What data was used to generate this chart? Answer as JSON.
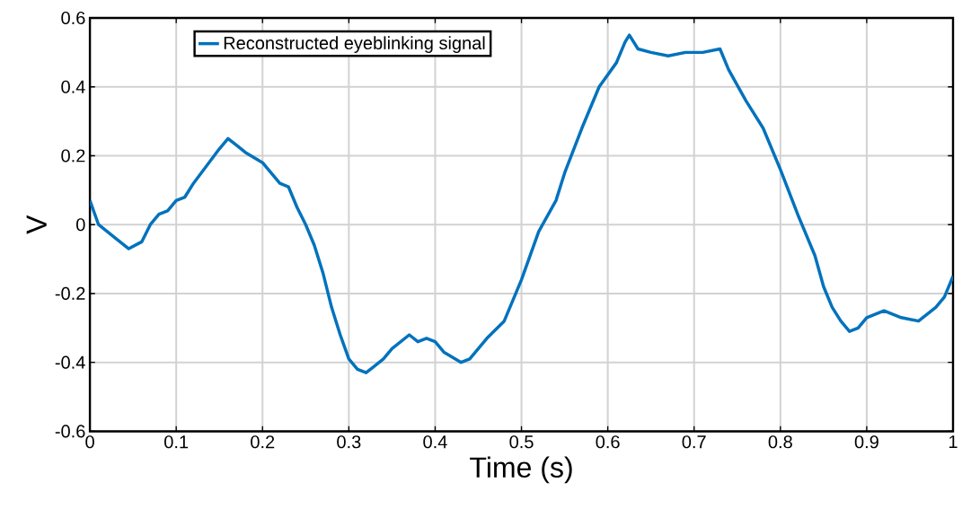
{
  "chart_data": {
    "type": "line",
    "xlabel": "Time (s)",
    "ylabel": "V",
    "xlim": [
      0,
      1
    ],
    "ylim": [
      -0.6,
      0.6
    ],
    "xticks": [
      0,
      0.1,
      0.2,
      0.3,
      0.4,
      0.5,
      0.6,
      0.7,
      0.8,
      0.9,
      1
    ],
    "yticks": [
      -0.6,
      -0.4,
      -0.2,
      0,
      0.2,
      0.4,
      0.6
    ],
    "grid": true,
    "legend": "top left",
    "series": [
      {
        "name": "Reconstructed eyeblinking signal",
        "color": "#0072bd",
        "x": [
          0,
          0.01,
          0.02,
          0.03,
          0.045,
          0.06,
          0.07,
          0.08,
          0.09,
          0.1,
          0.11,
          0.12,
          0.135,
          0.15,
          0.16,
          0.17,
          0.18,
          0.2,
          0.21,
          0.22,
          0.23,
          0.24,
          0.25,
          0.26,
          0.27,
          0.28,
          0.29,
          0.3,
          0.31,
          0.32,
          0.33,
          0.34,
          0.35,
          0.37,
          0.38,
          0.39,
          0.4,
          0.41,
          0.43,
          0.44,
          0.45,
          0.46,
          0.48,
          0.49,
          0.5,
          0.52,
          0.54,
          0.55,
          0.57,
          0.59,
          0.61,
          0.62,
          0.625,
          0.635,
          0.65,
          0.67,
          0.69,
          0.71,
          0.73,
          0.74,
          0.76,
          0.78,
          0.8,
          0.82,
          0.84,
          0.85,
          0.86,
          0.87,
          0.88,
          0.89,
          0.9,
          0.92,
          0.94,
          0.96,
          0.98,
          0.99,
          1
        ],
        "values": [
          0.07,
          0.0,
          -0.02,
          -0.04,
          -0.07,
          -0.05,
          0.0,
          0.03,
          0.04,
          0.07,
          0.08,
          0.12,
          0.17,
          0.22,
          0.25,
          0.23,
          0.21,
          0.18,
          0.15,
          0.12,
          0.11,
          0.05,
          0.0,
          -0.06,
          -0.14,
          -0.24,
          -0.32,
          -0.39,
          -0.42,
          -0.43,
          -0.41,
          -0.39,
          -0.36,
          -0.32,
          -0.34,
          -0.33,
          -0.34,
          -0.37,
          -0.4,
          -0.39,
          -0.36,
          -0.33,
          -0.28,
          -0.22,
          -0.16,
          -0.02,
          0.07,
          0.15,
          0.28,
          0.4,
          0.47,
          0.53,
          0.55,
          0.51,
          0.5,
          0.49,
          0.5,
          0.5,
          0.51,
          0.45,
          0.36,
          0.28,
          0.16,
          0.03,
          -0.09,
          -0.18,
          -0.24,
          -0.28,
          -0.31,
          -0.3,
          -0.27,
          -0.25,
          -0.27,
          -0.28,
          -0.24,
          -0.21,
          -0.15
        ]
      }
    ]
  }
}
